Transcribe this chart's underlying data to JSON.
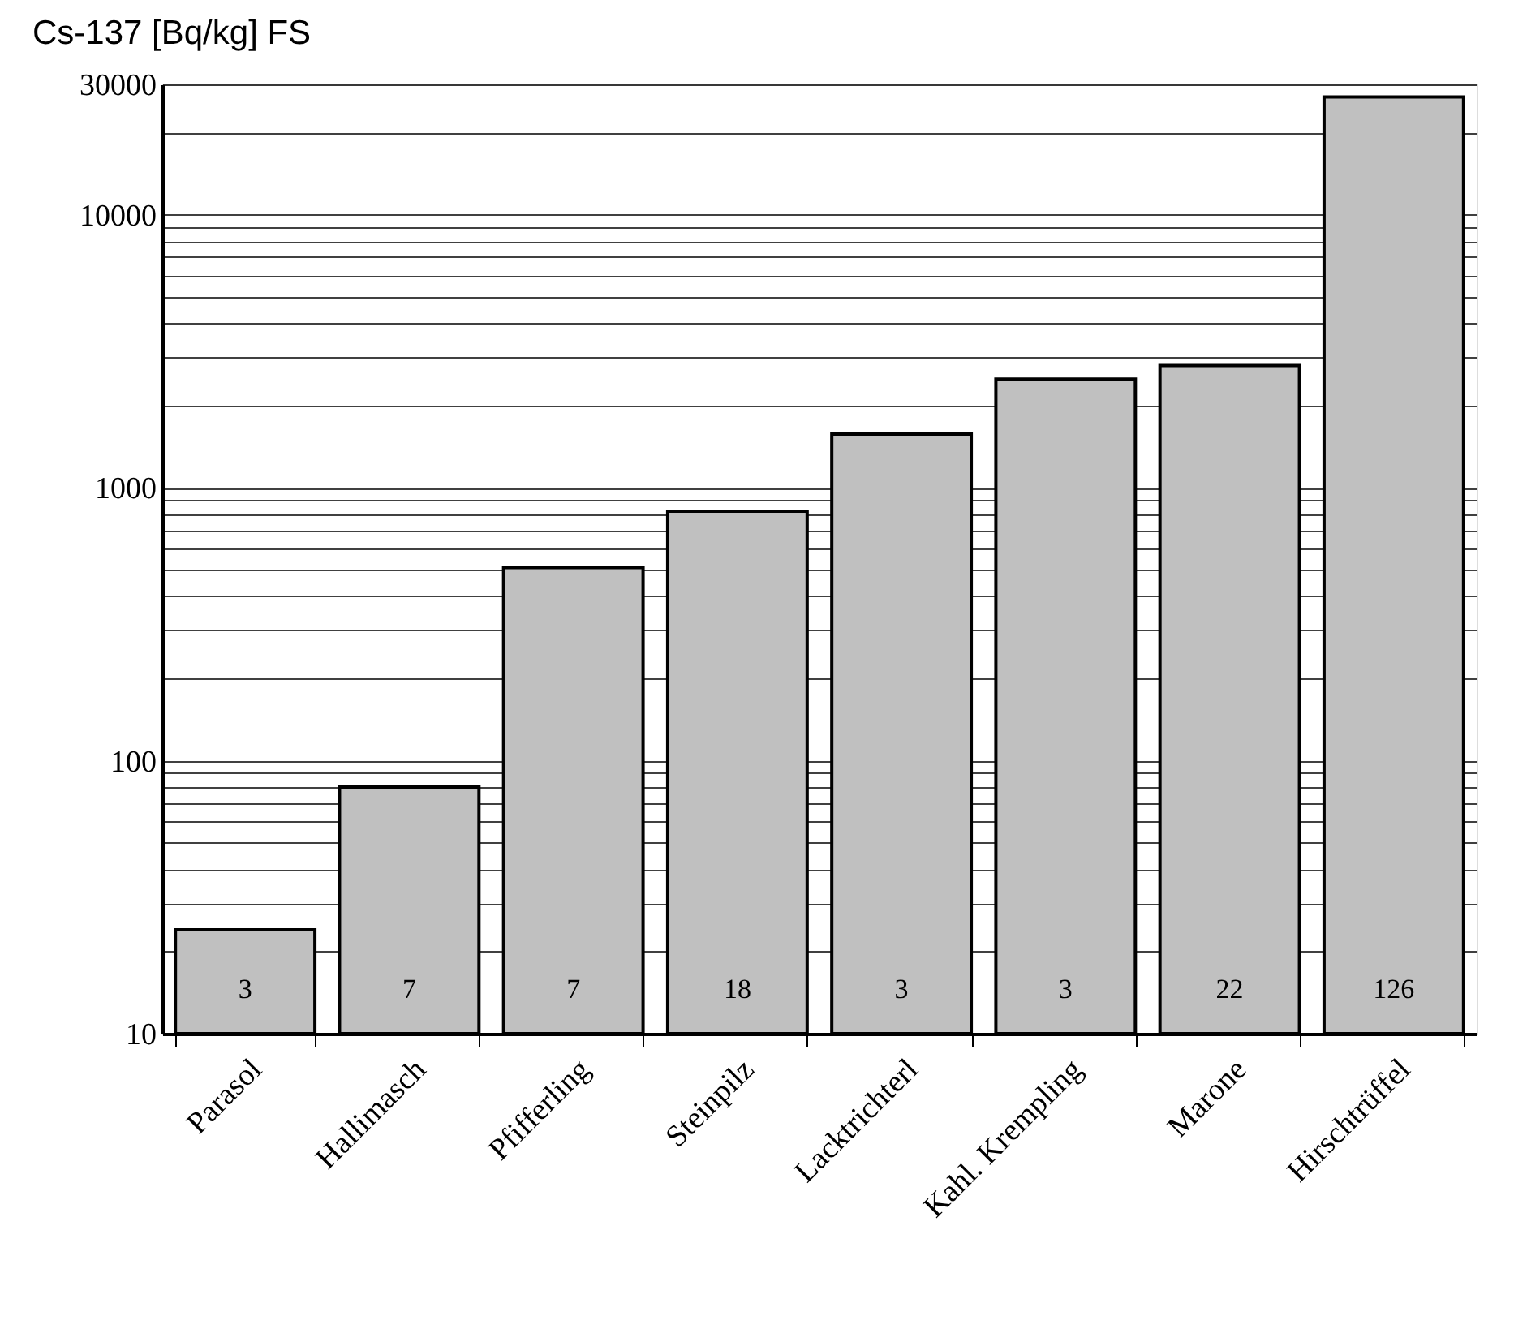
{
  "chart_data": {
    "type": "bar",
    "ylabel": "Cs-137 [Bq/kg] FS",
    "categories": [
      "Parasol",
      "Hallimasch",
      "Pfifferling",
      "Steinpilz",
      "Lacktrichterl",
      "Kahl. Krempling",
      "Marone",
      "Hirschtrüffel"
    ],
    "values": [
      24,
      80,
      510,
      820,
      1570,
      2500,
      2800,
      27000
    ],
    "color": "#c0c0c0",
    "log": "y",
    "ylim": [
      10,
      30000
    ],
    "yticks": [
      10,
      {
        "value": 20,
        "label": null
      },
      {
        "value": 30,
        "label": null
      },
      {
        "value": 40,
        "label": null
      },
      {
        "value": 50,
        "label": null
      },
      {
        "value": 60,
        "label": null
      },
      {
        "value": 70,
        "label": null
      },
      {
        "value": 80,
        "label": null
      },
      {
        "value": 90,
        "label": null
      },
      100,
      {
        "value": 200,
        "label": null
      },
      {
        "value": 300,
        "label": null
      },
      {
        "value": 400,
        "label": null
      },
      {
        "value": 500,
        "label": null
      },
      {
        "value": 600,
        "label": null
      },
      {
        "value": 700,
        "label": null
      },
      {
        "value": 800,
        "label": null
      },
      {
        "value": 900,
        "label": null
      },
      1000,
      {
        "value": 2000,
        "label": null
      },
      {
        "value": 3000,
        "label": null
      },
      {
        "value": 4000,
        "label": null
      },
      {
        "value": 5000,
        "label": null
      },
      {
        "value": 6000,
        "label": null
      },
      {
        "value": 7000,
        "label": null
      },
      {
        "value": 8000,
        "label": null
      },
      {
        "value": 9000,
        "label": null
      },
      10000,
      {
        "value": 20000,
        "label": null
      },
      30000
    ],
    "grid": "y",
    "annotations": [
      "3",
      "7",
      "7",
      "18",
      "3",
      "3",
      "22",
      "126"
    ]
  }
}
